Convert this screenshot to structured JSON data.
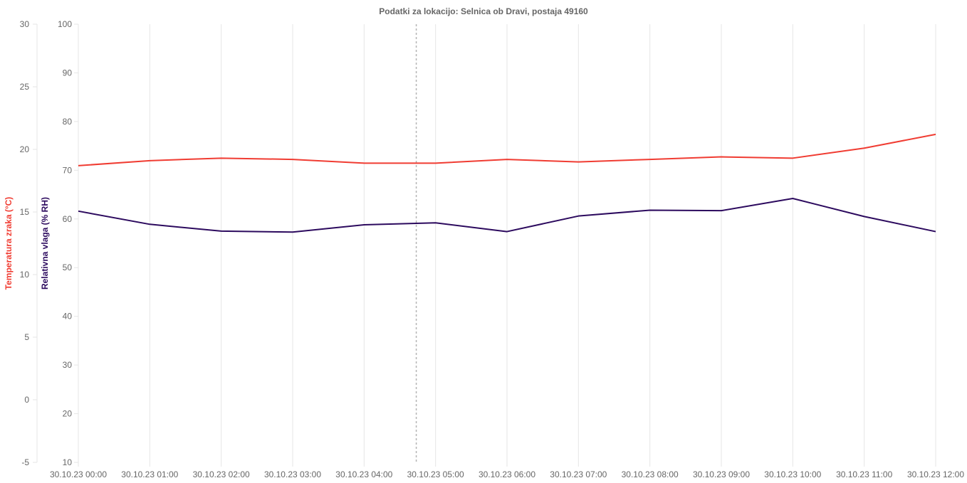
{
  "chart_data": {
    "type": "line",
    "title": "Podatki za lokacijo: Selnica ob Dravi, postaja 49160",
    "categories": [
      "30.10.23 00:00",
      "30.10.23 01:00",
      "30.10.23 02:00",
      "30.10.23 03:00",
      "30.10.23 04:00",
      "30.10.23 05:00",
      "30.10.23 06:00",
      "30.10.23 07:00",
      "30.10.23 08:00",
      "30.10.23 09:00",
      "30.10.23 10:00",
      "30.10.23 11:00",
      "30.10.23 12:00"
    ],
    "series": [
      {
        "name": "Temperatura zraka (°C)",
        "axis": "y1",
        "color": "#f03c32",
        "values": [
          18.7,
          19.1,
          19.3,
          19.2,
          18.9,
          18.9,
          19.2,
          19.0,
          19.2,
          19.4,
          19.3,
          20.1,
          21.2
        ]
      },
      {
        "name": "Relativna vlaga (% RH)",
        "axis": "y2",
        "color": "#2c0a5e",
        "values": [
          61.6,
          58.9,
          57.5,
          57.3,
          58.8,
          59.2,
          57.4,
          60.6,
          61.8,
          61.7,
          64.2,
          60.5,
          57.4
        ]
      }
    ],
    "y1": {
      "label": "Temperatura zraka (°C)",
      "color": "#f03c32",
      "ylim": [
        -5,
        30
      ],
      "ticks": [
        -5,
        0,
        5,
        10,
        15,
        20,
        25,
        30
      ]
    },
    "y2": {
      "label": "Relativna vlaga (% RH)",
      "color": "#2c0a5e",
      "ylim": [
        10,
        100
      ],
      "ticks": [
        10,
        20,
        30,
        40,
        50,
        60,
        70,
        80,
        90,
        100
      ]
    },
    "grid": {
      "vertical": true,
      "horizontal": false,
      "color": "#e6e6e6"
    },
    "crosshair": {
      "x_between": [
        "30.10.23 04:00",
        "30.10.23 05:00"
      ],
      "fraction": 0.73,
      "color": "#b4b4b4"
    },
    "legend": "none"
  }
}
